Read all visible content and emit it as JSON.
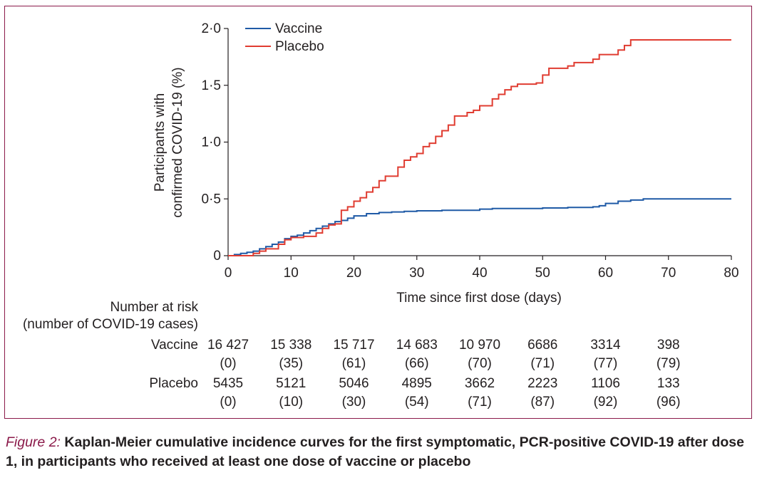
{
  "chart_data": {
    "type": "line",
    "xlabel": "Time since first dose (days)",
    "ylabel": [
      "Participants with",
      "confirmed COVID-19 (%)"
    ],
    "xlim": [
      0,
      80
    ],
    "ylim": [
      0,
      2.0
    ],
    "x_ticks": [
      0,
      10,
      20,
      30,
      40,
      50,
      60,
      70,
      80
    ],
    "x_tick_labels": [
      "0",
      "10",
      "20",
      "30",
      "40",
      "50",
      "60",
      "70",
      "80"
    ],
    "y_ticks": [
      0,
      0.5,
      1.0,
      1.5,
      2.0
    ],
    "y_tick_labels": [
      "0",
      "0·5",
      "1·0",
      "1·5",
      "2·0"
    ],
    "legend_position": "top-left",
    "series": [
      {
        "name": "Vaccine",
        "color": "#1f5aa6",
        "points": [
          [
            0,
            0
          ],
          [
            1,
            0.01
          ],
          [
            2,
            0.02
          ],
          [
            3,
            0.03
          ],
          [
            4,
            0.04
          ],
          [
            5,
            0.06
          ],
          [
            6,
            0.08
          ],
          [
            7,
            0.1
          ],
          [
            8,
            0.12
          ],
          [
            9,
            0.15
          ],
          [
            10,
            0.17
          ],
          [
            11,
            0.18
          ],
          [
            12,
            0.2
          ],
          [
            13,
            0.22
          ],
          [
            14,
            0.24
          ],
          [
            15,
            0.26
          ],
          [
            16,
            0.28
          ],
          [
            17,
            0.3
          ],
          [
            18,
            0.31
          ],
          [
            19,
            0.33
          ],
          [
            20,
            0.35
          ],
          [
            22,
            0.37
          ],
          [
            24,
            0.38
          ],
          [
            26,
            0.385
          ],
          [
            28,
            0.39
          ],
          [
            30,
            0.395
          ],
          [
            34,
            0.4
          ],
          [
            40,
            0.41
          ],
          [
            42,
            0.415
          ],
          [
            50,
            0.42
          ],
          [
            54,
            0.425
          ],
          [
            58,
            0.43
          ],
          [
            59,
            0.44
          ],
          [
            60,
            0.46
          ],
          [
            62,
            0.48
          ],
          [
            64,
            0.49
          ],
          [
            66,
            0.5
          ],
          [
            80,
            0.5
          ]
        ]
      },
      {
        "name": "Placebo",
        "color": "#e03c31",
        "points": [
          [
            0,
            0
          ],
          [
            4,
            0.02
          ],
          [
            5,
            0.04
          ],
          [
            6,
            0.06
          ],
          [
            8,
            0.1
          ],
          [
            9,
            0.14
          ],
          [
            10,
            0.16
          ],
          [
            12,
            0.17
          ],
          [
            14,
            0.2
          ],
          [
            15,
            0.24
          ],
          [
            16,
            0.27
          ],
          [
            17,
            0.28
          ],
          [
            18,
            0.3
          ],
          [
            18,
            0.4
          ],
          [
            19,
            0.43
          ],
          [
            20,
            0.48
          ],
          [
            21,
            0.51
          ],
          [
            22,
            0.56
          ],
          [
            23,
            0.6
          ],
          [
            24,
            0.66
          ],
          [
            25,
            0.7
          ],
          [
            27,
            0.78
          ],
          [
            28,
            0.84
          ],
          [
            29,
            0.87
          ],
          [
            30,
            0.9
          ],
          [
            31,
            0.96
          ],
          [
            32,
            0.99
          ],
          [
            33,
            1.05
          ],
          [
            34,
            1.1
          ],
          [
            35,
            1.15
          ],
          [
            36,
            1.23
          ],
          [
            38,
            1.26
          ],
          [
            39,
            1.28
          ],
          [
            40,
            1.32
          ],
          [
            42,
            1.38
          ],
          [
            43,
            1.42
          ],
          [
            44,
            1.46
          ],
          [
            45,
            1.49
          ],
          [
            46,
            1.51
          ],
          [
            49,
            1.52
          ],
          [
            50,
            1.59
          ],
          [
            51,
            1.65
          ],
          [
            54,
            1.67
          ],
          [
            55,
            1.7
          ],
          [
            58,
            1.73
          ],
          [
            59,
            1.77
          ],
          [
            62,
            1.81
          ],
          [
            63,
            1.85
          ],
          [
            64,
            1.9
          ],
          [
            80,
            1.9
          ]
        ]
      }
    ]
  },
  "risk_table": {
    "title_line1": "Number at risk",
    "title_line2": "(number of COVID-19 cases)",
    "rows": [
      {
        "label": "Vaccine",
        "counts": [
          "16 427",
          "15 338",
          "15 717",
          "14 683",
          "10 970",
          "6686",
          "3314",
          "398"
        ],
        "cases": [
          "(0)",
          "(35)",
          "(61)",
          "(66)",
          "(70)",
          "(71)",
          "(77)",
          "(79)"
        ]
      },
      {
        "label": "Placebo",
        "counts": [
          "5435",
          "5121",
          "5046",
          "4895",
          "3662",
          "2223",
          "1106",
          "133"
        ],
        "cases": [
          "(0)",
          "(10)",
          "(30)",
          "(54)",
          "(71)",
          "(87)",
          "(92)",
          "(96)"
        ]
      }
    ]
  },
  "caption": {
    "figure_label": "Figure 2:",
    "text": " Kaplan-Meier cumulative incidence curves for the first symptomatic, PCR-positive COVID-19 after dose 1, in participants who received at least one dose of vaccine or placebo"
  },
  "frame_color": "#8b1a4a"
}
